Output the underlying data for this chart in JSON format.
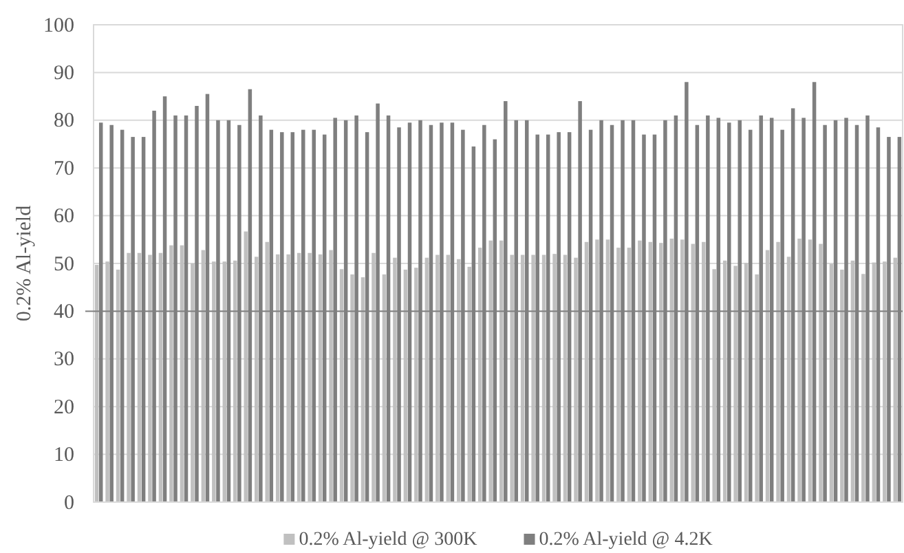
{
  "chart_data": {
    "type": "bar",
    "ylabel": "0.2% Al-yield",
    "categories": [
      null,
      null,
      null,
      null,
      null,
      null,
      null,
      null,
      null,
      null,
      null,
      null,
      null,
      null,
      null,
      null,
      null,
      null,
      null,
      null,
      null,
      null,
      null,
      null,
      null,
      null,
      null,
      null,
      null,
      null,
      null,
      null,
      null,
      null,
      null,
      null,
      null,
      null,
      null,
      null,
      null,
      null,
      null,
      null,
      null,
      null,
      null,
      null,
      null,
      null,
      null,
      null,
      null,
      null,
      null,
      null,
      null,
      null,
      null,
      null,
      null,
      null,
      null,
      null,
      null,
      null,
      null,
      null,
      null,
      null,
      null,
      null,
      null,
      null,
      null,
      null
    ],
    "series": [
      {
        "name": "0.2% Al-yield @ 300K",
        "color": "#c0c0c0",
        "values": [
          49.7,
          50.4,
          48.7,
          52.2,
          52.2,
          51.8,
          52.2,
          53.8,
          53.8,
          50.0,
          52.8,
          50.4,
          50.4,
          50.6,
          56.7,
          51.4,
          54.5,
          51.9,
          51.9,
          52.2,
          52.2,
          51.9,
          52.8,
          48.8,
          47.7,
          47.1,
          52.2,
          47.7,
          51.2,
          48.7,
          49.1,
          51.2,
          51.8,
          51.8,
          50.9,
          49.3,
          53.3,
          54.8,
          54.8,
          51.8,
          51.8,
          51.8,
          51.8,
          52.0,
          51.8,
          51.2,
          54.5,
          55.0,
          55.0,
          53.3,
          53.3,
          54.8,
          54.5,
          54.3,
          55.2,
          55.0,
          54.1,
          54.5,
          48.8,
          50.6,
          49.5,
          50.1,
          47.7,
          52.8,
          54.5,
          51.4,
          55.2,
          55.0,
          54.1,
          49.9,
          48.7,
          50.6,
          47.8,
          50.2,
          50.4,
          51.2
        ]
      },
      {
        "name": "0.2% Al-yield @ 4.2K",
        "color": "#7f7f7f",
        "values": [
          79.5,
          79,
          78,
          76.5,
          76.5,
          82,
          85,
          81,
          81,
          83,
          85.5,
          80,
          80,
          79,
          86.5,
          81,
          78,
          77.5,
          77.5,
          78,
          78,
          77,
          80.5,
          80,
          81,
          77.5,
          83.5,
          81,
          78.5,
          79.5,
          80,
          79,
          79.5,
          79.5,
          78,
          74.5,
          79,
          76,
          84,
          80,
          80,
          77,
          77,
          77.5,
          77.5,
          84,
          78,
          80,
          79,
          80,
          80,
          77,
          77,
          80,
          81,
          88,
          79,
          81,
          80.5,
          79.5,
          80,
          78,
          81,
          80.5,
          78,
          82.5,
          80.5,
          88,
          79,
          80,
          80.5,
          79,
          81,
          78.5,
          76.5,
          76.5
        ]
      }
    ],
    "ylim": [
      0,
      100
    ],
    "yticks": [
      0,
      10,
      20,
      30,
      40,
      50,
      60,
      70,
      80,
      90,
      100
    ],
    "grid": "y",
    "legend": "bottom",
    "ref_lines": [
      {
        "axis": "y",
        "value": 40,
        "color": "#808080"
      }
    ]
  }
}
